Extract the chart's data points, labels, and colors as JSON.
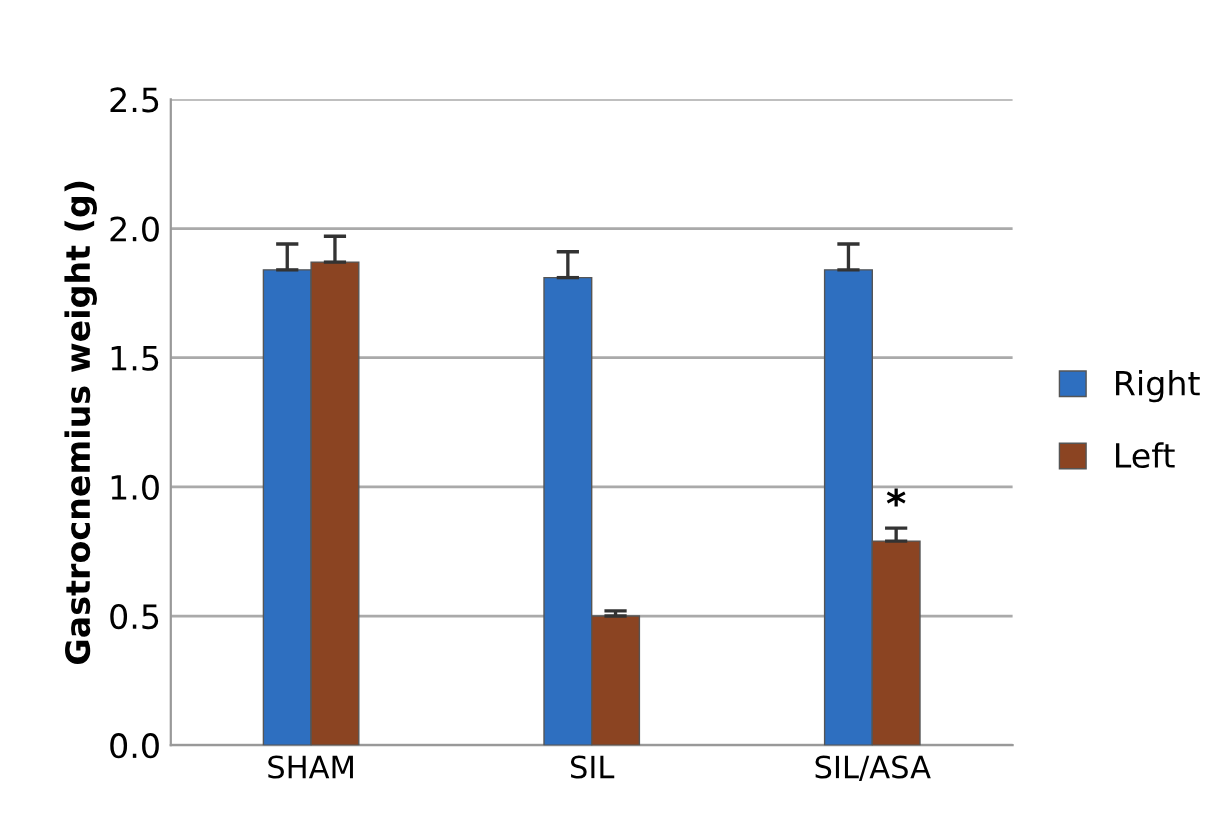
{
  "chart_data": {
    "type": "bar",
    "ylabel": "Gastrocnemius weight (g)",
    "categories": [
      "SHAM",
      "SIL",
      "SIL/ASA"
    ],
    "series": [
      {
        "name": "Right",
        "color": "#2e6fc0",
        "values": [
          1.84,
          1.81,
          1.84
        ],
        "errors": [
          [
            1.84,
            1.94
          ],
          [
            1.81,
            1.91
          ],
          [
            1.84,
            1.94
          ]
        ]
      },
      {
        "name": "Left",
        "color": "#8b4422",
        "values": [
          1.87,
          0.5,
          0.79
        ],
        "errors": [
          [
            1.87,
            1.97
          ],
          [
            0.5,
            0.52
          ],
          [
            0.79,
            0.84
          ]
        ]
      }
    ],
    "annotations": [
      {
        "text": "*",
        "x": "SIL/ASA",
        "y": 0.84
      }
    ],
    "ylim": [
      0,
      2.5
    ],
    "yticks": [
      {
        "value": 0,
        "label": "0.0"
      },
      {
        "value": 0.5,
        "label": "0.5"
      },
      {
        "value": 1,
        "label": "1.0"
      },
      {
        "value": 1.5,
        "label": "1.5"
      },
      {
        "value": 2,
        "label": "2.0"
      },
      {
        "value": 2.5,
        "label": "2.5"
      }
    ],
    "grid": "y",
    "legend": "right"
  }
}
